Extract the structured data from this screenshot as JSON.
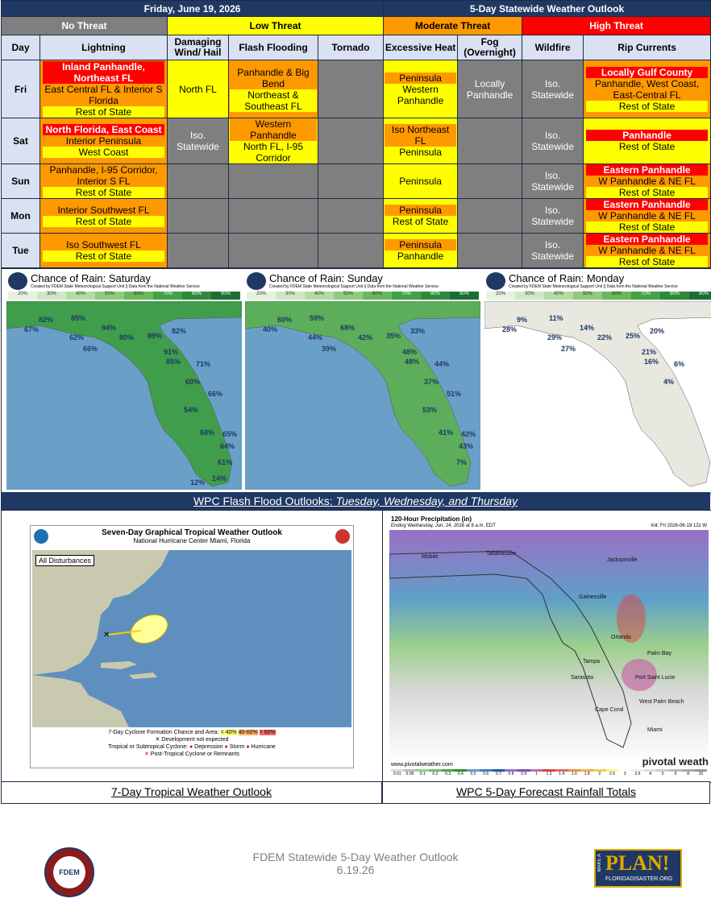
{
  "header": {
    "date": "Friday, June 19, 2026",
    "title": "5-Day Statewide Weather Outlook"
  },
  "legend": {
    "none": "No Threat",
    "low": "Low Threat",
    "moderate": "Moderate Threat",
    "high": "High Threat"
  },
  "columns": [
    "Day",
    "Lightning",
    "Damaging Wind/ Hail",
    "Flash Flooding",
    "Tornado",
    "Excessive Heat",
    "Fog (Overnight)",
    "Wildfire",
    "Rip Currents"
  ],
  "days": [
    {
      "day": "Fri",
      "lightning": {
        "bg": "orange",
        "lines": [
          {
            "t": "Inland Panhandle, Northeast FL",
            "c": "red"
          },
          {
            "t": "East Central FL & Interior S Florida",
            "c": "orange"
          },
          {
            "t": "Rest of State",
            "c": "yellow"
          }
        ]
      },
      "wind": {
        "bg": "yellow",
        "lines": [
          {
            "t": "North FL",
            "c": "none"
          }
        ]
      },
      "flood": {
        "bg": "orange",
        "lines": [
          {
            "t": "Panhandle & Big Bend",
            "c": "orange"
          },
          {
            "t": "Northeast & Southeast FL",
            "c": "yellow"
          }
        ]
      },
      "tornado": {
        "bg": "gray",
        "lines": []
      },
      "heat": {
        "bg": "yellow",
        "lines": [
          {
            "t": "Peninsula",
            "c": "orange"
          },
          {
            "t": "Western Panhandle",
            "c": "yellow"
          }
        ]
      },
      "fog": {
        "bg": "gray",
        "lines": [
          {
            "t": "Locally Panhandle",
            "c": "none"
          }
        ]
      },
      "wildfire": {
        "bg": "gray",
        "lines": [
          {
            "t": "Iso. Statewide",
            "c": "none"
          }
        ]
      },
      "rip": {
        "bg": "orange",
        "lines": [
          {
            "t": "Locally Gulf County",
            "c": "red"
          },
          {
            "t": "Panhandle, West Coast, East-Central FL",
            "c": "orange"
          },
          {
            "t": "Rest of State",
            "c": "yellow"
          }
        ]
      }
    },
    {
      "day": "Sat",
      "lightning": {
        "bg": "orange",
        "lines": [
          {
            "t": "North Florida, East Coast",
            "c": "red"
          },
          {
            "t": "Interior Peninsula",
            "c": "orange"
          },
          {
            "t": "West Coast",
            "c": "yellow"
          }
        ]
      },
      "wind": {
        "bg": "gray",
        "lines": [
          {
            "t": "Iso. Statewide",
            "c": "none"
          }
        ]
      },
      "flood": {
        "bg": "yellow",
        "lines": [
          {
            "t": "Western Panhandle",
            "c": "orange"
          },
          {
            "t": "North FL, I-95 Corridor",
            "c": "yellow"
          }
        ]
      },
      "tornado": {
        "bg": "gray",
        "lines": []
      },
      "heat": {
        "bg": "yellow",
        "lines": [
          {
            "t": "Iso Northeast FL",
            "c": "orange"
          },
          {
            "t": "Peninsula",
            "c": "yellow"
          }
        ]
      },
      "fog": {
        "bg": "gray",
        "lines": []
      },
      "wildfire": {
        "bg": "gray",
        "lines": [
          {
            "t": "Iso. Statewide",
            "c": "none"
          }
        ]
      },
      "rip": {
        "bg": "yellow",
        "lines": [
          {
            "t": "Panhandle",
            "c": "red"
          },
          {
            "t": "Rest of State",
            "c": "yellow"
          }
        ]
      }
    },
    {
      "day": "Sun",
      "lightning": {
        "bg": "orange",
        "lines": [
          {
            "t": "Panhandle, I-95 Corridor, Interior S FL",
            "c": "orange"
          },
          {
            "t": "Rest of State",
            "c": "yellow"
          }
        ]
      },
      "wind": {
        "bg": "gray",
        "lines": []
      },
      "flood": {
        "bg": "gray",
        "lines": []
      },
      "tornado": {
        "bg": "gray",
        "lines": []
      },
      "heat": {
        "bg": "yellow",
        "lines": [
          {
            "t": "Peninsula",
            "c": "none"
          }
        ]
      },
      "fog": {
        "bg": "gray",
        "lines": []
      },
      "wildfire": {
        "bg": "gray",
        "lines": [
          {
            "t": "Iso. Statewide",
            "c": "none"
          }
        ]
      },
      "rip": {
        "bg": "orange",
        "lines": [
          {
            "t": "Eastern Panhandle",
            "c": "red"
          },
          {
            "t": "W Panhandle & NE FL",
            "c": "orange"
          },
          {
            "t": "Rest of State",
            "c": "yellow"
          }
        ]
      }
    },
    {
      "day": "Mon",
      "lightning": {
        "bg": "orange",
        "lines": [
          {
            "t": "Interior Southwest FL",
            "c": "orange"
          },
          {
            "t": "Rest of State",
            "c": "yellow"
          }
        ]
      },
      "wind": {
        "bg": "gray",
        "lines": []
      },
      "flood": {
        "bg": "gray",
        "lines": []
      },
      "tornado": {
        "bg": "gray",
        "lines": []
      },
      "heat": {
        "bg": "yellow",
        "lines": [
          {
            "t": "Peninsula",
            "c": "orange"
          },
          {
            "t": "Rest of State",
            "c": "yellow"
          }
        ]
      },
      "fog": {
        "bg": "gray",
        "lines": []
      },
      "wildfire": {
        "bg": "gray",
        "lines": [
          {
            "t": "Iso. Statewide",
            "c": "none"
          }
        ]
      },
      "rip": {
        "bg": "orange",
        "lines": [
          {
            "t": "Eastern Panhandle",
            "c": "red"
          },
          {
            "t": "W Panhandle & NE FL",
            "c": "orange"
          },
          {
            "t": "Rest of State",
            "c": "yellow"
          }
        ]
      }
    },
    {
      "day": "Tue",
      "lightning": {
        "bg": "orange",
        "lines": [
          {
            "t": "Iso Southwest FL",
            "c": "orange"
          },
          {
            "t": "Rest of State",
            "c": "yellow"
          }
        ]
      },
      "wind": {
        "bg": "gray",
        "lines": []
      },
      "flood": {
        "bg": "gray",
        "lines": []
      },
      "tornado": {
        "bg": "gray",
        "lines": []
      },
      "heat": {
        "bg": "yellow",
        "lines": [
          {
            "t": "Peninsula",
            "c": "orange"
          },
          {
            "t": "Panhandle",
            "c": "yellow"
          }
        ]
      },
      "fog": {
        "bg": "gray",
        "lines": []
      },
      "wildfire": {
        "bg": "gray",
        "lines": [
          {
            "t": "Iso. Statewide",
            "c": "none"
          }
        ]
      },
      "rip": {
        "bg": "orange",
        "lines": [
          {
            "t": "Eastern Panhandle",
            "c": "red"
          },
          {
            "t": "W Panhandle & NE FL",
            "c": "orange"
          },
          {
            "t": "Rest of State",
            "c": "yellow"
          }
        ]
      }
    }
  ],
  "rain_maps": [
    {
      "title": "Chance of Rain: Saturday",
      "credit": "Created by FDEM State Meteorological Support Unit || Data from the National Weather Service",
      "values": [
        "82%",
        "85%",
        "94%",
        "80%",
        "89%",
        "82%",
        "67%",
        "62%",
        "66%",
        "91%",
        "85%",
        "71%",
        "60%",
        "66%",
        "54%",
        "68%",
        "65%",
        "64%",
        "61%",
        "14%",
        "12%"
      ]
    },
    {
      "title": "Chance of Rain: Sunday",
      "credit": "Created by FDEM State Meteorological Support Unit || Data from the National Weather Service",
      "values": [
        "60%",
        "59%",
        "68%",
        "42%",
        "35%",
        "33%",
        "40%",
        "44%",
        "39%",
        "48%",
        "48%",
        "44%",
        "37%",
        "51%",
        "53%",
        "41%",
        "42%",
        "43%",
        "7%"
      ]
    },
    {
      "title": "Chance of Rain: Monday",
      "credit": "Created by FDEM State Meteorological Support Unit || Data from the National Weather Service",
      "values": [
        "9%",
        "11%",
        "14%",
        "22%",
        "25%",
        "20%",
        "28%",
        "29%",
        "27%",
        "21%",
        "16%",
        "6%",
        "4%"
      ]
    }
  ],
  "rain_scale": [
    "20%",
    "30%",
    "40%",
    "50%",
    "60%",
    "70%",
    "80%",
    "90%"
  ],
  "section_flash": "WPC Flash Flood Outlooks: ",
  "section_flash_days": "Tuesday, Wednesday, and Thursday",
  "tropical": {
    "title": "Seven-Day Graphical Tropical Weather Outlook",
    "subtitle": "National Hurricane Center  Miami, Florida",
    "box": "All Disturbances",
    "legend1": "7-Day Cyclone Formation Chance and Area:",
    "chance_low": "< 40%",
    "chance_mid": "40-60%",
    "chance_high": "> 60%",
    "legend2": "Development not expected",
    "legend3": "Tropical or Subtropical Cyclone:",
    "depression": "Depression",
    "storm": "Storm",
    "hurricane": "Hurricane",
    "legend4": "Post-Tropical Cyclone or Remnants",
    "caption": "7-Day Tropical Weather Outlook"
  },
  "precip": {
    "title": "120-Hour Precipitation (in)",
    "subtitle": "Ending Wednesday, Jun. 24, 2026 at 8 a.m. EDT",
    "init": "Init: Fri 2026-06-19 12z W",
    "site": "www.pivotalweather.com",
    "brand": "pivotal weath",
    "cities": [
      "Mobile",
      "Tallahassee",
      "Jacksonville",
      "Gainesville",
      "Orlando",
      "Tampa",
      "Sarasota",
      "Palm Bay",
      "Port Saint Lucie",
      "West Palm Beach",
      "Cape Coral",
      "Miami"
    ],
    "scale": [
      "0.01",
      "0.05",
      "0.1",
      "0.2",
      "0.3",
      "0.4",
      "0.5",
      "0.6",
      "0.7",
      "0.8",
      "0.9",
      "1",
      "1.2",
      "1.4",
      "1.6",
      "1.8",
      "2",
      "2.5",
      "3",
      "3.5",
      "4",
      "5",
      "6",
      "8",
      "10"
    ],
    "caption": "WPC 5-Day Forecast Rainfall Totals"
  },
  "footer": {
    "line1": "FDEM Statewide 5-Day Weather Outlook",
    "line2": "6.19.26",
    "fdem": "FDEM",
    "plan": "PLAN!",
    "plan_sub": "FLORIDADISASTER.ORG",
    "make_a": "MAKE A"
  }
}
